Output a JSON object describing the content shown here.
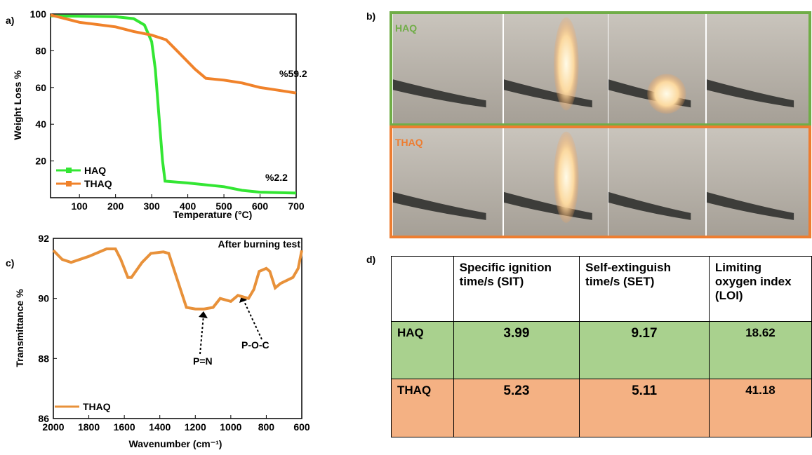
{
  "panel_labels": [
    "a)",
    "b)",
    "c)",
    "d)"
  ],
  "chart_data": [
    {
      "type": "line",
      "x_label": "Temperature (°C)",
      "y_label": "Weight Loss %",
      "xlim": [
        20,
        700
      ],
      "ylim": [
        0,
        100
      ],
      "xticks": [
        100,
        200,
        300,
        400,
        500,
        600,
        700
      ],
      "yticks": [
        20,
        40,
        60,
        80,
        100
      ],
      "annotations": [
        "%59.2",
        "%2.2"
      ],
      "series": [
        {
          "name": "HAQ",
          "color": "#33e633",
          "x": [
            20,
            100,
            200,
            250,
            280,
            300,
            310,
            320,
            330,
            337,
            400,
            500,
            550,
            600,
            700
          ],
          "values": [
            99,
            98.8,
            98.5,
            97.5,
            94,
            85,
            70,
            45,
            20,
            9,
            8,
            6,
            4,
            3,
            2.5
          ]
        },
        {
          "name": "THAQ",
          "color": "#f0822a",
          "x": [
            20,
            50,
            100,
            200,
            250,
            300,
            340,
            380,
            420,
            450,
            500,
            550,
            600,
            650,
            700
          ],
          "values": [
            99.5,
            98,
            95.5,
            93,
            90.5,
            88.5,
            86,
            78,
            70,
            65,
            64,
            62.5,
            60,
            58.5,
            57
          ]
        }
      ]
    },
    {
      "type": "line",
      "x_label": "Wavenumber (cm⁻¹)",
      "y_label": "Transmittance %",
      "xlim": [
        2000,
        600
      ],
      "ylim": [
        86,
        92
      ],
      "xticks": [
        2000,
        1800,
        1600,
        1400,
        1200,
        1000,
        800,
        600
      ],
      "yticks": [
        86,
        88,
        90,
        92
      ],
      "annotations": [
        "After burning test",
        "P=N",
        "P-O-C"
      ],
      "series": [
        {
          "name": "THAQ",
          "color": "#e8913a",
          "x": [
            2000,
            1950,
            1900,
            1800,
            1700,
            1650,
            1620,
            1580,
            1560,
            1500,
            1450,
            1380,
            1350,
            1300,
            1250,
            1200,
            1150,
            1100,
            1060,
            1030,
            1000,
            960,
            900,
            870,
            840,
            800,
            780,
            750,
            720,
            650,
            620,
            600
          ],
          "values": [
            91.6,
            91.3,
            91.2,
            91.4,
            91.65,
            91.65,
            91.3,
            90.7,
            90.7,
            91.2,
            91.5,
            91.55,
            91.5,
            90.6,
            89.7,
            89.65,
            89.65,
            89.7,
            90.0,
            89.95,
            89.9,
            90.1,
            90.0,
            90.3,
            90.9,
            91.0,
            90.9,
            90.35,
            90.5,
            90.7,
            91.0,
            91.6
          ]
        }
      ]
    }
  ],
  "photos": {
    "rows": [
      "HAQ",
      "THAQ"
    ]
  },
  "table": {
    "columns": [
      "Specific ignition time/s (SIT)",
      "Self-extinguish time/s (SET)",
      "Limiting oxygen index (LOI)"
    ],
    "rows": [
      {
        "label": "HAQ",
        "values": [
          3.99,
          9.17,
          18.62
        ]
      },
      {
        "label": "THAQ",
        "values": [
          5.23,
          5.11,
          41.18
        ]
      }
    ]
  }
}
